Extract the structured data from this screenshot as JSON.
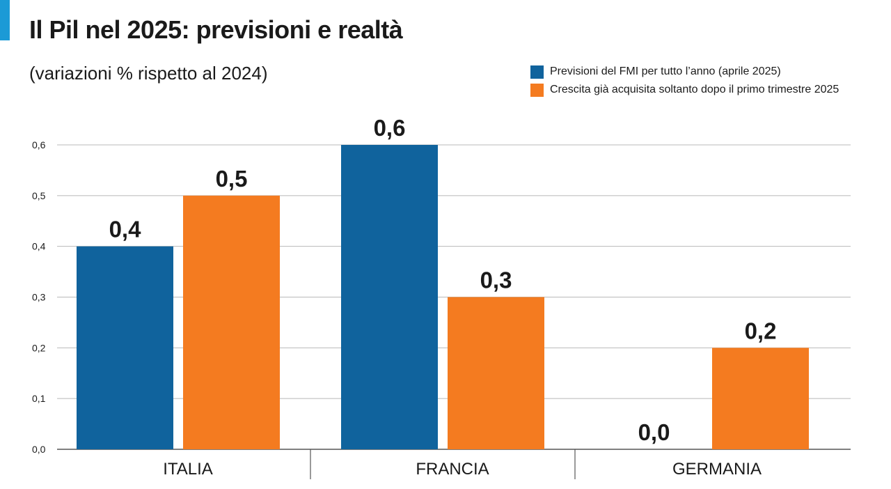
{
  "colors": {
    "accent": "#1b9ad6",
    "blue": "#10639d",
    "orange": "#f47b20",
    "grid": "#b8b8b8",
    "text": "#1a1a1a"
  },
  "chart_data": {
    "type": "bar",
    "title": "Il Pil nel 2025: previsioni e realtà",
    "subtitle": "(variazioni % rispetto al 2024)",
    "categories": [
      "ITALIA",
      "FRANCIA",
      "GERMANIA"
    ],
    "series": [
      {
        "name": "Previsioni del FMI per tutto l’anno (aprile 2025)",
        "color": "#10639d",
        "values": [
          0.4,
          0.6,
          0.0
        ],
        "labels": [
          "0,4",
          "0,6",
          "0,0"
        ]
      },
      {
        "name": "Crescita già acquisita soltanto dopo il primo trimestre 2025",
        "color": "#f47b20",
        "values": [
          0.5,
          0.3,
          0.2
        ],
        "labels": [
          "0,5",
          "0,3",
          "0,2"
        ]
      }
    ],
    "y_ticks": [
      0.0,
      0.1,
      0.2,
      0.3,
      0.4,
      0.5,
      0.6
    ],
    "y_tick_labels": [
      "0,0",
      "0,1",
      "0,2",
      "0,3",
      "0,4",
      "0,5",
      "0,6"
    ],
    "ylim": [
      0,
      0.6
    ],
    "xlabel": "",
    "ylabel": "",
    "grid": true,
    "legend": "top-right"
  }
}
